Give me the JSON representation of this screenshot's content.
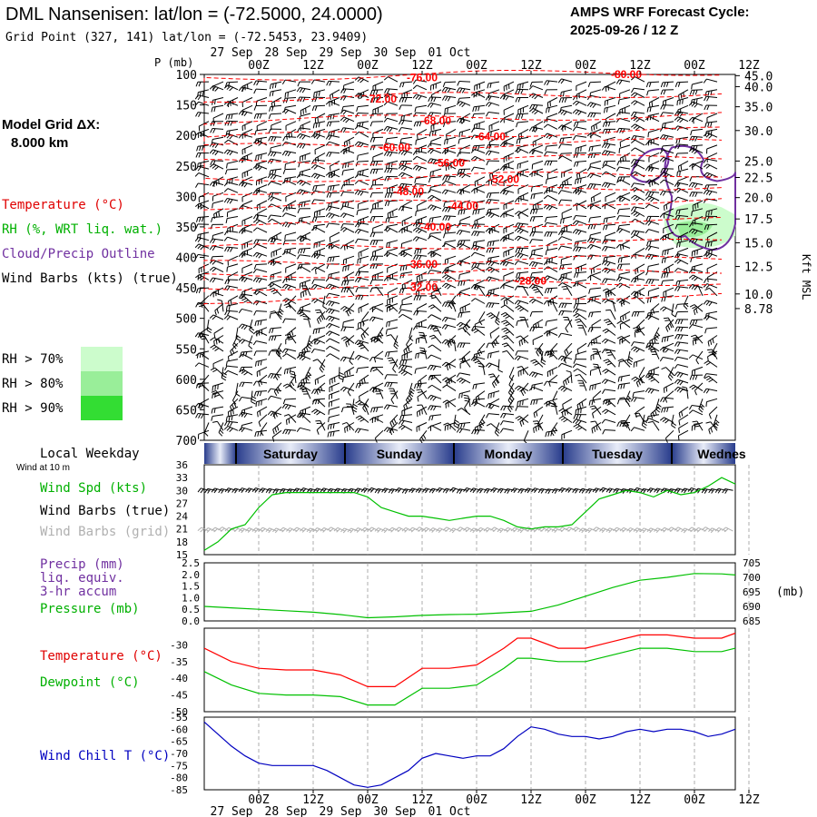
{
  "header": {
    "title": "DML Nansenisen:  lat/lon = (-72.5000, 24.0000)",
    "subtitle": "Grid Point (327, 141) lat/lon = (-72.5453, 23.9409)",
    "cycle_line1": "AMPS WRF Forecast Cycle:",
    "cycle_line2": "2025-09-26 / 12  Z"
  },
  "colors": {
    "temperature": "#ff0000",
    "rh_label": "#e00000",
    "cloud": "#7030a0",
    "wind": "#000000",
    "wind_grid": "#b0b0b0",
    "green": "#00c000",
    "blue": "#0000c0",
    "rh70": "#ccfccc",
    "rh80": "#99ee99",
    "rh90": "#33dd33",
    "band_blue": "#283c8c"
  },
  "left_labels": {
    "model_grid_1": "Model Grid ΔX:",
    "model_grid_2": "8.000 km",
    "temperature": "Temperature (°C)",
    "rh": "RH (%, WRT liq. wat.)",
    "cloud": "Cloud/Precip Outline",
    "wind": "Wind Barbs (kts) (true)",
    "rh70": "RH > 70%",
    "rh80": "RH > 80%",
    "rh90": "RH > 90%",
    "local_weekday": "Local Weekday",
    "wind_10m": "Wind at 10 m",
    "wind_spd": "Wind Spd (kts)",
    "wind_barbs_true": "Wind Barbs (true)",
    "wind_barbs_grid": "Wind Barbs (grid)",
    "precip_1": "Precip (mm)",
    "precip_2": "liq. equiv.",
    "precip_3": "3-hr accum",
    "pressure": "Pressure (mb)",
    "temperature2": "Temperature (°C)",
    "dewpoint": "Dewpoint (°C)",
    "wind_chill": "Wind Chill T (°C)",
    "p_mb": "P (mb)",
    "kft_msl": "Kft MSL",
    "mb_unit": "(mb)"
  },
  "time_axis": {
    "hour_ticks": [
      "00Z",
      "12Z",
      "00Z",
      "12Z",
      "00Z",
      "12Z",
      "00Z",
      "12Z",
      "00Z",
      "12Z"
    ],
    "hour_tick_positions_h": [
      12,
      24,
      36,
      48,
      60,
      72,
      84,
      96,
      108,
      120
    ],
    "date_labels": [
      "27 Sep",
      "28 Sep",
      "29 Sep",
      "30 Sep",
      "01 Oct"
    ],
    "date_positions_h": [
      6,
      18,
      30,
      42,
      54
    ]
  },
  "weekdays": {
    "labels": [
      "Saturday",
      "Sunday",
      "Monday",
      "Tuesday",
      "Wednes"
    ],
    "separators_h": [
      7,
      31,
      55,
      79,
      103
    ]
  },
  "chart_data": [
    {
      "type": "contour",
      "name": "Time-height cross section",
      "xlabel": "",
      "ylabel": "P (mb)",
      "x_range_hours": [
        0,
        117
      ],
      "ylim": [
        700,
        100
      ],
      "y_ticks_pressure": [
        100,
        150,
        200,
        250,
        300,
        350,
        400,
        450,
        500,
        550,
        600,
        650,
        700
      ],
      "y2_ticks_kft": [
        "45.0",
        "40.0",
        "35.0",
        "30.0",
        "25.0",
        "22.5",
        "20.0",
        "17.5",
        "15.0",
        "12.5",
        "10.0",
        "8.78"
      ],
      "y2_tick_pressure": [
        102,
        120,
        153,
        192,
        242,
        269,
        302,
        337,
        376,
        415,
        460,
        484
      ],
      "temperature_labels": [
        {
          "text": "-76.00",
          "h": 48,
          "p": 105
        },
        {
          "text": "-80.00",
          "h": 93,
          "p": 100
        },
        {
          "text": "-72.00",
          "h": 39,
          "p": 140
        },
        {
          "text": "-68.00",
          "h": 51,
          "p": 176
        },
        {
          "text": "-64.00",
          "h": 63,
          "p": 202
        },
        {
          "text": "-60.00",
          "h": 42,
          "p": 220
        },
        {
          "text": "-56.00",
          "h": 54,
          "p": 245
        },
        {
          "text": "-52.00",
          "h": 66,
          "p": 272
        },
        {
          "text": "-48.00",
          "h": 45,
          "p": 292
        },
        {
          "text": "-44.00",
          "h": 57,
          "p": 316
        },
        {
          "text": "-40.00",
          "h": 51,
          "p": 350
        },
        {
          "text": "-36.00",
          "h": 48,
          "p": 411
        },
        {
          "text": "-32.00",
          "h": 48,
          "p": 449
        },
        {
          "text": "-28.00",
          "h": 72,
          "p": 439
        }
      ],
      "rh_green_region": "around h 102-117, p 310-395"
    },
    {
      "type": "line",
      "name": "Wind Spd (kts)",
      "ylim": [
        15,
        36
      ],
      "y_ticks": [
        15,
        18,
        21,
        24,
        27,
        30,
        33,
        36
      ],
      "x_hours": [
        0,
        3,
        6,
        9,
        12,
        15,
        18,
        21,
        24,
        27,
        30,
        33,
        36,
        39,
        42,
        45,
        48,
        51,
        54,
        57,
        60,
        63,
        66,
        69,
        72,
        75,
        78,
        81,
        84,
        87,
        90,
        93,
        96,
        99,
        102,
        105,
        108,
        111,
        114,
        117
      ],
      "values": [
        16,
        18,
        21,
        22,
        26,
        29,
        29.5,
        29.5,
        29.5,
        29.5,
        29.5,
        29.5,
        28.5,
        26,
        25,
        24,
        24,
        23.5,
        23,
        23.5,
        24,
        24,
        23,
        21.5,
        21,
        21.5,
        21.5,
        22,
        25,
        28,
        29,
        30,
        29.5,
        28.5,
        30,
        29,
        29.5,
        31,
        33,
        31.5
      ]
    },
    {
      "type": "line",
      "name": "Pressure (mb)",
      "ylim_left": [
        0.0,
        2.5
      ],
      "y_ticks_left": [
        "0.0",
        "0.5",
        "1.0",
        "1.5",
        "2.0",
        "2.5"
      ],
      "ylim_right": [
        685,
        705
      ],
      "y_ticks_right": [
        685,
        690,
        695,
        700,
        705
      ],
      "x_hours": [
        0,
        6,
        12,
        18,
        24,
        30,
        36,
        42,
        48,
        54,
        60,
        66,
        72,
        78,
        84,
        90,
        96,
        102,
        108,
        114,
        117
      ],
      "values": [
        690,
        689.5,
        689,
        688.5,
        688,
        687.2,
        686.1,
        686.4,
        686.9,
        687.2,
        687.3,
        687.8,
        688.3,
        690.5,
        693.5,
        696.5,
        699,
        700,
        701.3,
        701.2,
        700.8
      ]
    },
    {
      "type": "line",
      "name": "Temperature / Dewpoint (°C)",
      "ylim": [
        -50,
        -25
      ],
      "y_ticks": [
        -50,
        -45,
        -40,
        -35,
        -30
      ],
      "x_hours": [
        0,
        6,
        12,
        18,
        24,
        30,
        36,
        42,
        48,
        54,
        60,
        66,
        69,
        72,
        78,
        84,
        90,
        96,
        102,
        108,
        114,
        117
      ],
      "series": [
        {
          "name": "Temperature",
          "color": "#ff0000",
          "values": [
            -31,
            -35,
            -37,
            -37.5,
            -37.5,
            -39,
            -42.5,
            -42.5,
            -37,
            -37,
            -36,
            -31,
            -28,
            -28,
            -31,
            -31,
            -29,
            -27,
            -27,
            -28,
            -28,
            -26.5
          ]
        },
        {
          "name": "Dewpoint",
          "color": "#00c000",
          "values": [
            -38,
            -42,
            -44.5,
            -45,
            -45,
            -45.5,
            -48,
            -48,
            -43,
            -43,
            -42,
            -37,
            -34,
            -34,
            -35,
            -35,
            -33,
            -31,
            -31,
            -32,
            -32,
            -31
          ]
        }
      ]
    },
    {
      "type": "line",
      "name": "Wind Chill T (°C)",
      "ylim": [
        -85,
        -55
      ],
      "y_ticks": [
        -85,
        -80,
        -75,
        -70,
        -65,
        -60,
        -55
      ],
      "x_hours": [
        0,
        3,
        6,
        9,
        12,
        15,
        18,
        21,
        24,
        27,
        30,
        33,
        36,
        39,
        42,
        45,
        48,
        51,
        54,
        57,
        60,
        63,
        66,
        69,
        72,
        75,
        78,
        81,
        84,
        87,
        90,
        93,
        96,
        99,
        102,
        105,
        108,
        111,
        114,
        117
      ],
      "values": [
        -57,
        -62,
        -67,
        -71,
        -74,
        -75,
        -75,
        -75,
        -75,
        -77,
        -80,
        -83,
        -84,
        -83,
        -80,
        -77,
        -72,
        -70,
        -71,
        -72,
        -71,
        -71,
        -68,
        -63,
        -59,
        -60,
        -62,
        -63,
        -63,
        -64,
        -63,
        -61,
        -60,
        -61,
        -60,
        -60,
        -61,
        -63,
        -62,
        -60
      ]
    }
  ]
}
